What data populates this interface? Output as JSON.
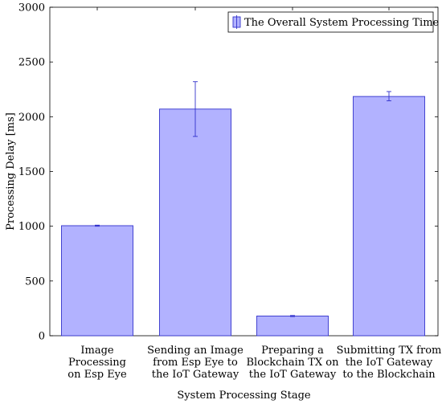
{
  "chart_data": {
    "type": "bar",
    "title": "",
    "xlabel": "System Processing Stage",
    "ylabel": "Processing Delay [ms]",
    "ylim": [
      0,
      3000
    ],
    "yticks": [
      0,
      500,
      1000,
      1500,
      2000,
      2500,
      3000
    ],
    "categories": [
      [
        "Image",
        "Processing",
        "on Esp Eye"
      ],
      [
        "Sending an Image",
        "from Esp Eye to",
        "the IoT Gateway"
      ],
      [
        "Preparing a",
        "Blockchain TX on",
        "the IoT Gateway"
      ],
      [
        "Submitting TX from",
        "the IoT Gateway",
        "to the Blockchain"
      ]
    ],
    "series": [
      {
        "name": "The Overall System Processing Time",
        "values": [
          1005,
          2070,
          180,
          2185
        ],
        "error_low": [
          1000,
          1820,
          175,
          2145
        ],
        "error_high": [
          1010,
          2320,
          185,
          2230
        ],
        "fill_color": "#b2b2ff",
        "edge_color": "#3333cc"
      }
    ],
    "legend": {
      "position": "top-right"
    },
    "grid": false
  }
}
